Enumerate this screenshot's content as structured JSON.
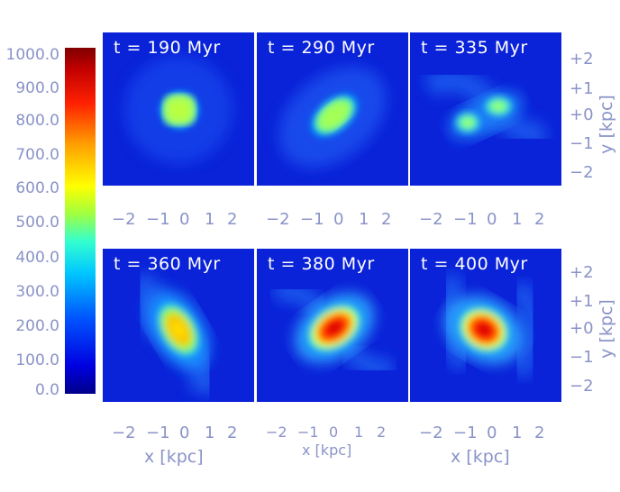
{
  "colorbar": {
    "ticks": [
      "1000.0",
      "900.0",
      "800.0",
      "700.0",
      "600.0",
      "500.0",
      "400.0",
      "300.0",
      "200.0",
      "100.0",
      "0.0"
    ]
  },
  "panels": [
    {
      "time": "t = 190 Myr"
    },
    {
      "time": "t = 290 Myr"
    },
    {
      "time": "t = 335 Myr"
    },
    {
      "time": "t = 360 Myr"
    },
    {
      "time": "t = 380 Myr"
    },
    {
      "time": "t = 400 Myr"
    }
  ],
  "xaxis": {
    "ticks": [
      "−2",
      "−1",
      "0",
      "1",
      "2"
    ],
    "label": "x [kpc]"
  },
  "yaxis": {
    "ticks": [
      "+2",
      "+1",
      "+0",
      "−1",
      "−2"
    ],
    "label": "y [kpc]"
  }
}
